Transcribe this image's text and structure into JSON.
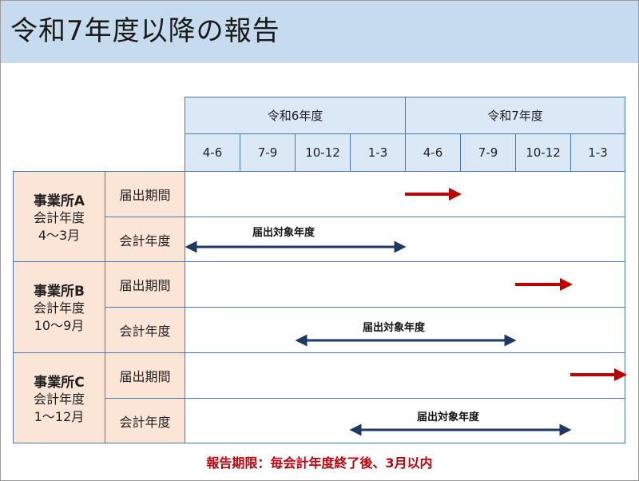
{
  "title": "令和7年度以降の報告",
  "years": [
    "令和6年度",
    "令和7年度"
  ],
  "quarters": [
    "4-6",
    "7-9",
    "10-12",
    "1-3",
    "4-6",
    "7-9",
    "10-12",
    "1-3"
  ],
  "row_labels": {
    "filing": "届出期間",
    "fiscal": "会計年度"
  },
  "target_label": "届出対象年度",
  "offices": [
    {
      "name": "事業所A",
      "sub1": "会計年度",
      "sub2": "4～3月"
    },
    {
      "name": "事業所B",
      "sub1": "会計年度",
      "sub2": "10～9月"
    },
    {
      "name": "事業所C",
      "sub1": "会計年度",
      "sub2": "1～12月"
    }
  ],
  "footer": "報告期限：毎会計年度終了後、3月以内",
  "colors": {
    "filing_arrow": "#c00000",
    "fiscal_arrow": "#1f3864",
    "header_bg": "#dbe8f5",
    "label_bg": "#fbe5d6"
  }
}
